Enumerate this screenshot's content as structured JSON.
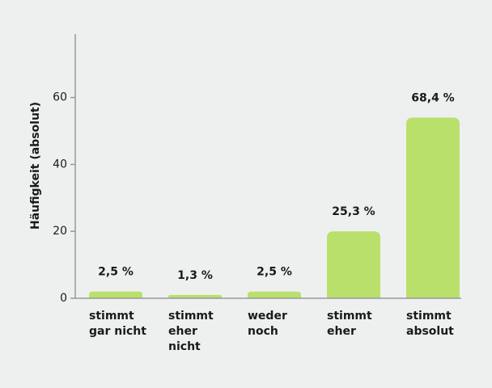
{
  "chart_data": {
    "type": "bar",
    "y_label": "Häufigkeit (absolut)",
    "categories": [
      [
        "stimmt",
        "gar nicht"
      ],
      [
        "stimmt",
        "eher",
        "nicht"
      ],
      [
        "weder",
        "noch"
      ],
      [
        "stimmt",
        "eher"
      ],
      [
        "stimmt",
        "absolut"
      ]
    ],
    "values": [
      2,
      1,
      2,
      20,
      54
    ],
    "annotations": [
      "2,5 %",
      "1,3 %",
      "2,5 %",
      "25,3 %",
      "68,4 %"
    ],
    "color": "#b9e06a",
    "ylim": [
      0,
      79
    ],
    "yticks": [
      0,
      20,
      40,
      60
    ]
  }
}
